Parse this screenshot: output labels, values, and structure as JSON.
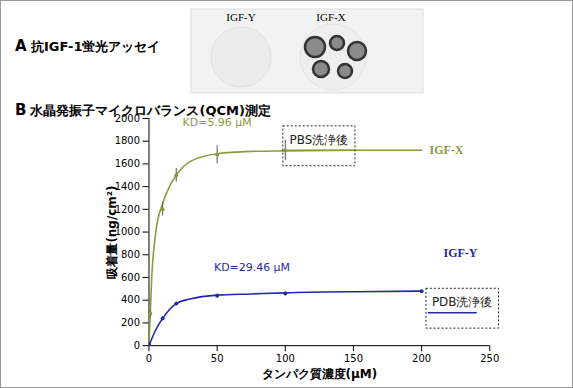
{
  "panel_a": {
    "label": "A",
    "title": "抗IGF-1蛍光アッセイ",
    "columns": [
      "IGF-Y",
      "IGF-X"
    ]
  },
  "chart_data": {
    "type": "line",
    "panel": "B",
    "title": "水晶発振子マイクロバランス(QCM)測定",
    "x_label": "タンパク質濃度(μM)",
    "y_label": "吸着量(ng/cm²)",
    "xlim": [
      0,
      250
    ],
    "xticks": [
      0,
      50,
      100,
      150,
      200,
      250
    ],
    "ylim": [
      0,
      2000
    ],
    "yticks": [
      0,
      200,
      400,
      600,
      800,
      1000,
      1200,
      1400,
      1600,
      1800,
      2000
    ],
    "grid": false,
    "marker": "circle",
    "series": [
      {
        "name": "IGF-X",
        "color": "#8c9b3e",
        "kd_label": "KD=5.96 μM",
        "x": [
          1,
          10,
          20,
          50,
          100
        ],
        "values": [
          280,
          1200,
          1500,
          1680,
          1720
        ],
        "error": [
          30,
          60,
          60,
          80,
          90
        ],
        "fit_x": [
          0,
          2,
          5,
          10,
          15,
          20,
          30,
          50,
          75,
          100,
          150,
          200
        ],
        "fit_values": [
          0,
          600,
          1000,
          1250,
          1400,
          1500,
          1620,
          1690,
          1710,
          1715,
          1720,
          1720
        ],
        "post_wash": {
          "label": "PBS洗浄後",
          "x": [
            100,
            150
          ],
          "value": 1720
        }
      },
      {
        "name": "IGF-Y",
        "color": "#1f2aa8",
        "kd_label": "KD=29.46 μM",
        "x": [
          0,
          10,
          20,
          50,
          100,
          200
        ],
        "values": [
          10,
          240,
          370,
          440,
          460,
          480
        ],
        "error": [
          5,
          15,
          15,
          15,
          15,
          10
        ],
        "fit_x": [
          0,
          5,
          10,
          20,
          30,
          50,
          75,
          100,
          150,
          200
        ],
        "fit_values": [
          0,
          140,
          240,
          370,
          410,
          445,
          455,
          465,
          475,
          480
        ],
        "post_wash": {
          "label": "PDB洗浄後",
          "x": [
            205,
            240
          ],
          "value": 290
        }
      }
    ]
  }
}
